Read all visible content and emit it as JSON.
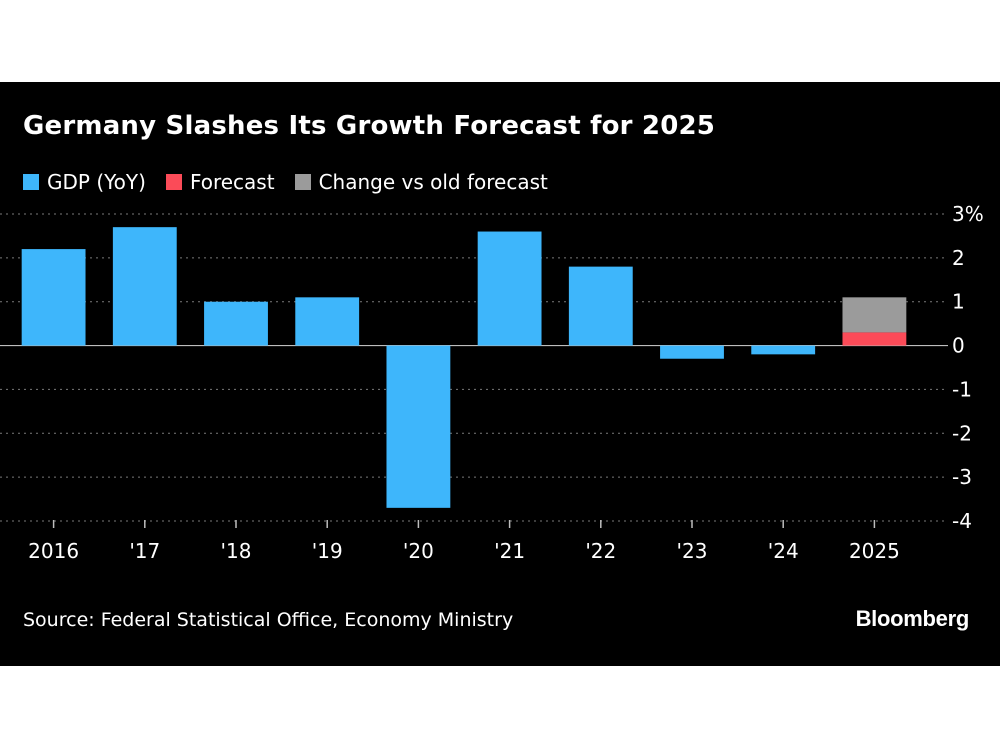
{
  "chart_data": {
    "type": "bar",
    "title": "Germany Slashes Its Growth Forecast for 2025",
    "categories": [
      "2016",
      "'17",
      "'18",
      "'19",
      "'20",
      "'21",
      "'22",
      "'23",
      "'24",
      "2025"
    ],
    "series": [
      {
        "name": "GDP (YoY)",
        "color": "#3eb6fb",
        "values": [
          2.2,
          2.7,
          1.0,
          1.1,
          -3.7,
          2.6,
          1.8,
          -0.3,
          -0.2,
          null
        ]
      },
      {
        "name": "Forecast",
        "color": "#fb4b58",
        "values": [
          null,
          null,
          null,
          null,
          null,
          null,
          null,
          null,
          null,
          0.3
        ]
      },
      {
        "name": "Change vs old forecast",
        "color": "#9b9b9b",
        "values": [
          null,
          null,
          null,
          null,
          null,
          null,
          null,
          null,
          null,
          0.8
        ]
      }
    ],
    "stacked_on_forecast": "Change vs old forecast",
    "y_ticks": [
      3,
      2,
      1,
      0,
      -1,
      -2,
      -3,
      -4
    ],
    "y_tick_labels": [
      "3%",
      "2",
      "1",
      "0",
      "-1",
      "-2",
      "-3",
      "-4"
    ],
    "ylim": [
      -4,
      3
    ],
    "y_axis_side": "right",
    "grid": true,
    "legend_position": "top-left"
  },
  "footer": {
    "source": "Source: Federal Statistical Office, Economy Ministry",
    "brand": "Bloomberg"
  }
}
